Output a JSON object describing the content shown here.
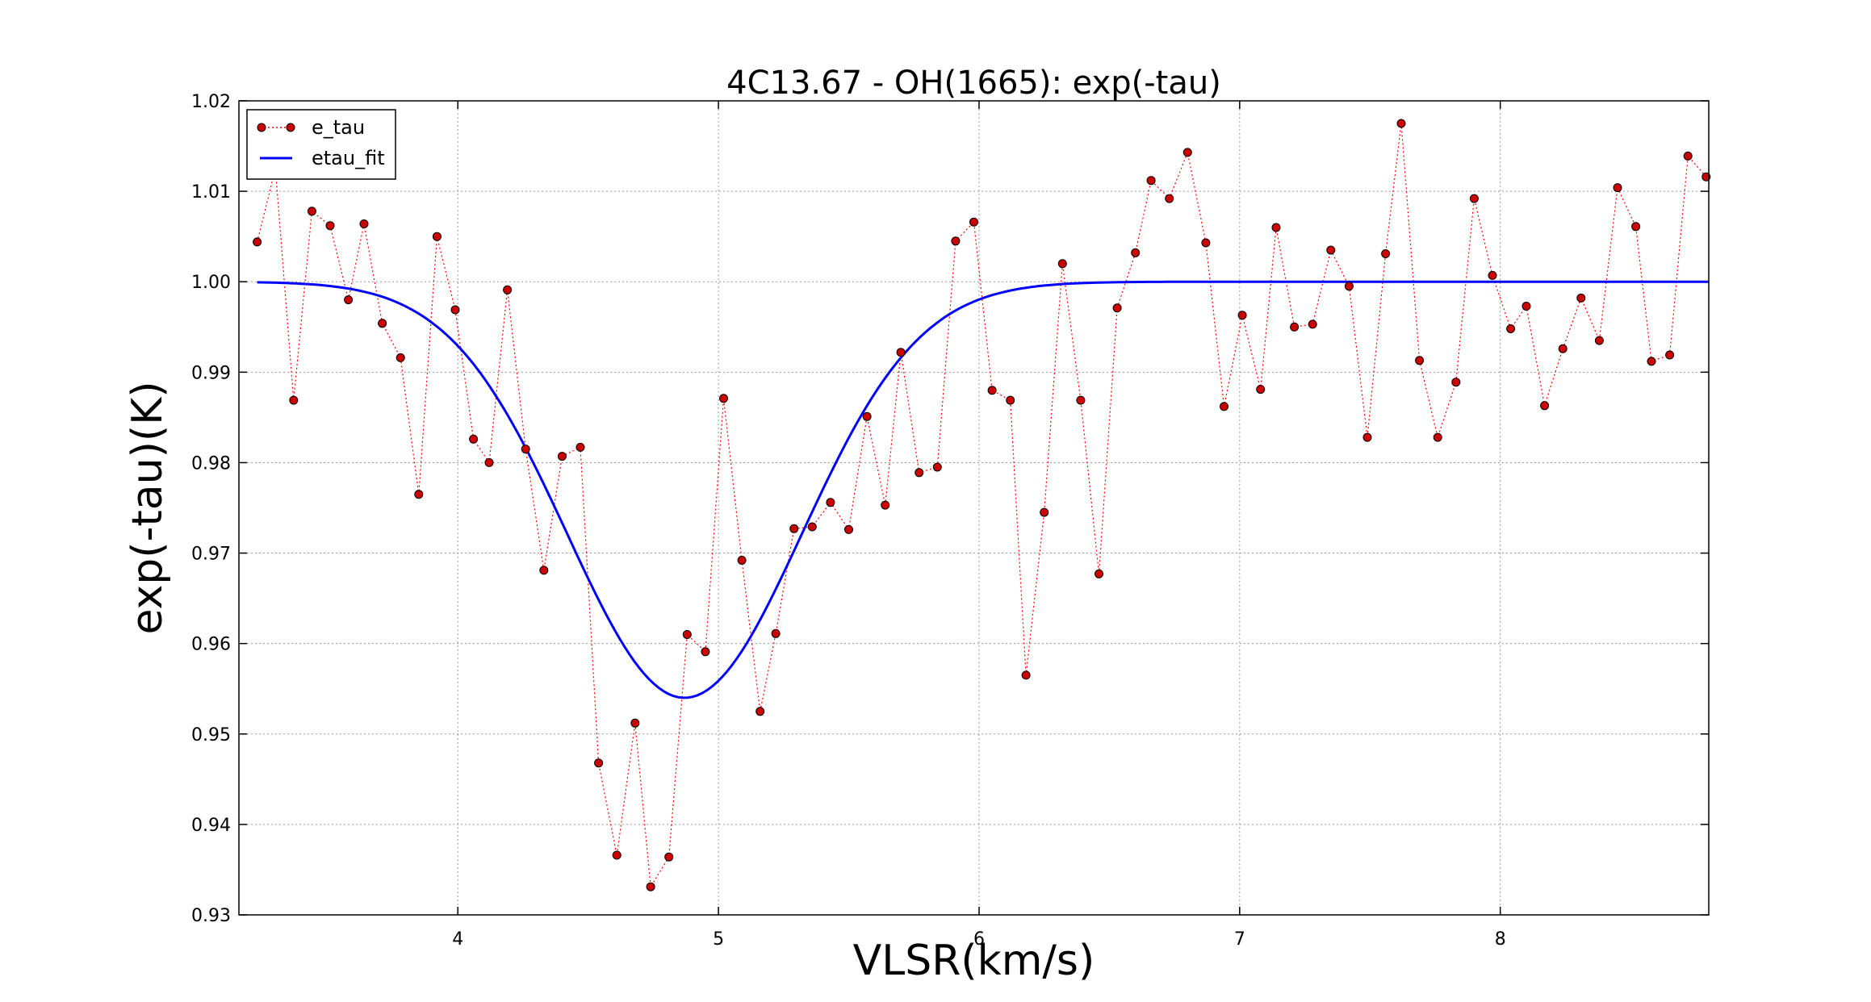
{
  "chart_data": {
    "type": "line",
    "title": "4C13.67 - OH(1665): exp(-tau)",
    "xlabel": "VLSR(km/s)",
    "ylabel": "exp(-tau)(K)",
    "xlim": [
      3.16,
      8.8
    ],
    "ylim": [
      0.93,
      1.02
    ],
    "grid": true,
    "legend_position": "top-left",
    "x_ticks": [
      4,
      5,
      6,
      7,
      8
    ],
    "x_tick_labels": [
      "4",
      "5",
      "6",
      "7",
      "8"
    ],
    "y_ticks": [
      0.93,
      0.94,
      0.95,
      0.96,
      0.97,
      0.98,
      0.99,
      1.0,
      1.01,
      1.02
    ],
    "y_tick_labels": [
      "0.93",
      "0.94",
      "0.95",
      "0.96",
      "0.97",
      "0.98",
      "0.99",
      "1.00",
      "1.01",
      "1.02"
    ],
    "series": [
      {
        "name": "e_tau",
        "style": "dotted-line-with-markers",
        "color": "#ff0000",
        "marker_color": "#cc0000",
        "x": [
          3.23,
          3.3,
          3.37,
          3.44,
          3.51,
          3.58,
          3.64,
          3.71,
          3.78,
          3.85,
          3.92,
          3.99,
          4.06,
          4.12,
          4.19,
          4.26,
          4.33,
          4.4,
          4.47,
          4.54,
          4.61,
          4.68,
          4.74,
          4.81,
          4.88,
          4.95,
          5.02,
          5.09,
          5.16,
          5.22,
          5.29,
          5.36,
          5.43,
          5.5,
          5.57,
          5.64,
          5.7,
          5.77,
          5.84,
          5.91,
          5.98,
          6.05,
          6.12,
          6.18,
          6.25,
          6.32,
          6.39,
          6.46,
          6.53,
          6.6,
          6.66,
          6.73,
          6.8,
          6.87,
          6.94,
          7.01,
          7.08,
          7.14,
          7.21,
          7.28,
          7.35,
          7.42,
          7.49,
          7.56,
          7.62,
          7.69,
          7.76,
          7.83,
          7.9,
          7.97,
          8.04,
          8.1,
          8.17,
          8.24,
          8.31,
          8.38,
          8.45,
          8.52,
          8.58,
          8.65,
          8.72,
          8.79
        ],
        "y": [
          1.0044,
          1.0125,
          0.9869,
          1.0078,
          1.0062,
          0.998,
          1.0064,
          0.9954,
          0.9916,
          0.9765,
          1.005,
          0.9969,
          0.9826,
          0.98,
          0.9991,
          0.9815,
          0.9681,
          0.9807,
          0.9817,
          0.9468,
          0.9366,
          0.9512,
          0.9331,
          0.9364,
          0.961,
          0.9591,
          0.9871,
          0.9692,
          0.9525,
          0.9611,
          0.9727,
          0.9729,
          0.9756,
          0.9726,
          0.9851,
          0.9753,
          0.9922,
          0.9789,
          0.9795,
          1.0045,
          1.0066,
          0.988,
          0.9869,
          0.9565,
          0.9745,
          1.002,
          0.9869,
          0.9677,
          0.9971,
          1.0032,
          1.0112,
          1.0092,
          1.0143,
          1.0043,
          0.9862,
          0.9963,
          0.9881,
          1.006,
          0.995,
          0.9953,
          1.0035,
          0.9995,
          0.9828,
          1.0031,
          1.0175,
          0.9913,
          0.9828,
          0.9889,
          1.0092,
          1.0007,
          0.9948,
          0.9973,
          0.9863,
          0.9926,
          0.9982,
          0.9935,
          1.0104,
          1.0061,
          0.9912,
          0.9919,
          1.0139,
          1.0116
        ]
      },
      {
        "name": "etau_fit",
        "style": "solid-line",
        "color": "#0000ff",
        "model": "1 - A*exp(-(x-mu)^2/(2*sigma^2))",
        "parameters": {
          "A": 0.046,
          "mu": 4.87,
          "sigma": 0.45
        }
      }
    ]
  }
}
